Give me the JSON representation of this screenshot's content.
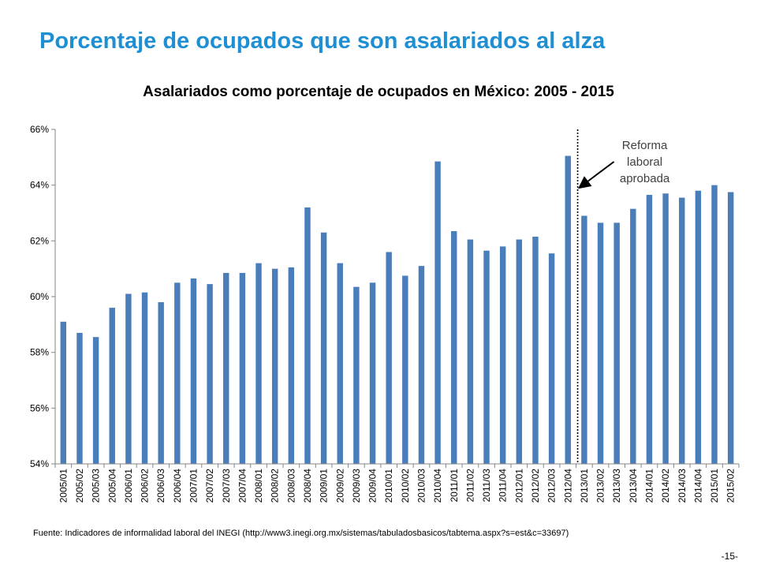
{
  "slide": {
    "title": "Porcentaje de ocupados que son asalariados al alza",
    "source": "Fuente: Indicadores de informalidad laboral del INEGI (http://www3.inegi.org.mx/sistemas/tabuladosbasicos/tabtema.aspx?s=est&c=33697)",
    "page_number": "-15-"
  },
  "colors": {
    "bar": "#4a7ebb",
    "title": "#1f8fd3",
    "axis": "#868686"
  },
  "chart_data": {
    "type": "bar",
    "title": "Asalariados como porcentaje de ocupados en México: 2005 - 2015",
    "xlabel": "",
    "ylabel": "",
    "ylim": [
      54,
      66
    ],
    "yticks": [
      54,
      56,
      58,
      60,
      62,
      64,
      66
    ],
    "ytick_labels": [
      "54%",
      "56%",
      "58%",
      "60%",
      "62%",
      "64%",
      "66%"
    ],
    "grid": false,
    "categories": [
      "2005/01",
      "2005/02",
      "2005/03",
      "2005/04",
      "2006/01",
      "2006/02",
      "2006/03",
      "2006/04",
      "2007/01",
      "2007/02",
      "2007/03",
      "2007/04",
      "2008/01",
      "2008/02",
      "2008/03",
      "2008/04",
      "2009/01",
      "2009/02",
      "2009/03",
      "2009/04",
      "2010/01",
      "2010/02",
      "2010/03",
      "2010/04",
      "2011/01",
      "2011/02",
      "2011/03",
      "2011/04",
      "2012/01",
      "2012/02",
      "2012/03",
      "2012/04",
      "2013/01",
      "2013/02",
      "2013/03",
      "2013/04",
      "2014/01",
      "2014/02",
      "2014/03",
      "2014/04",
      "2015/01",
      "2015/02"
    ],
    "values": [
      59.1,
      58.7,
      58.55,
      59.6,
      60.1,
      60.15,
      59.8,
      60.5,
      60.65,
      60.45,
      60.85,
      60.85,
      61.2,
      61.0,
      61.05,
      63.2,
      62.3,
      61.2,
      60.35,
      60.5,
      61.6,
      60.75,
      61.1,
      64.85,
      62.35,
      62.05,
      61.65,
      61.8,
      62.05,
      62.15,
      61.55,
      65.05,
      62.9,
      62.65,
      62.65,
      63.15,
      63.65,
      63.7,
      63.55,
      63.8,
      64.0,
      63.75
    ],
    "annotation": {
      "lines": [
        "Reforma",
        "laboral",
        "aprobada"
      ],
      "after_category": "2012/04"
    }
  }
}
